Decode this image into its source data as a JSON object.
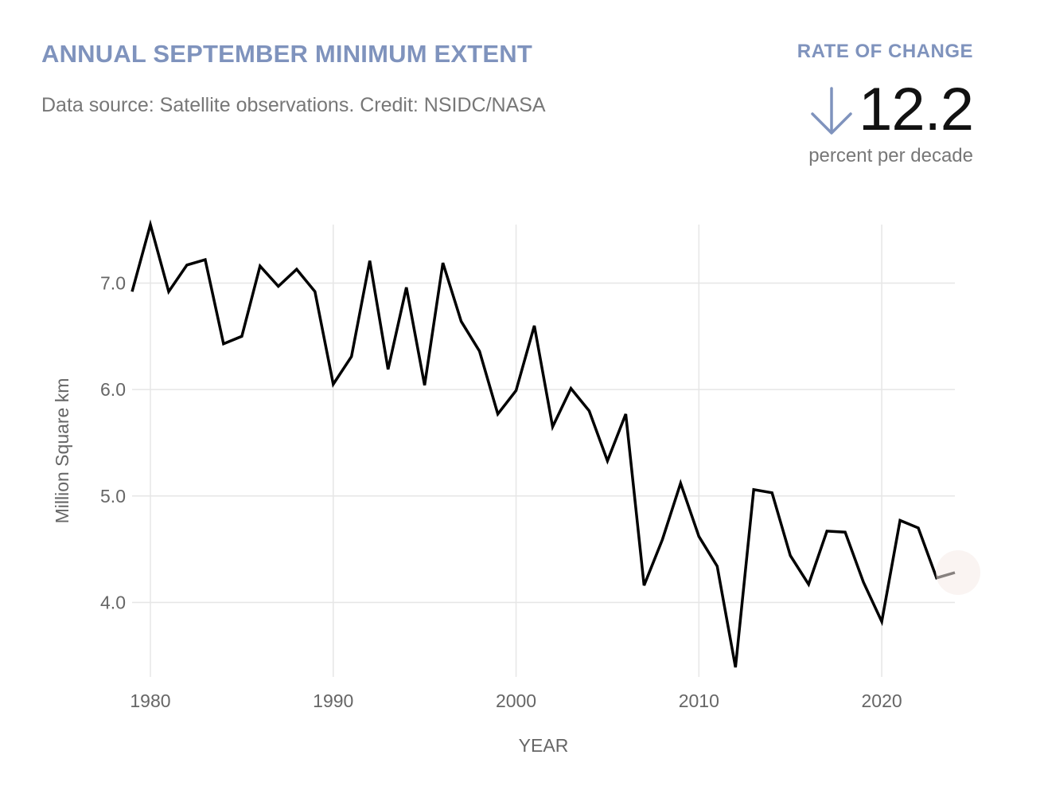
{
  "header": {
    "title": "ANNUAL SEPTEMBER MINIMUM EXTENT",
    "subtitle": "Data source: Satellite observations. Credit: NSIDC/NASA"
  },
  "rate": {
    "label": "RATE OF CHANGE",
    "direction_icon": "arrow-down-icon",
    "value": "12.2",
    "unit": "percent per decade"
  },
  "colors": {
    "accent": "#7f93bd",
    "line": "#000000",
    "grid": "#e6e6e6",
    "muted_text": "#777777"
  },
  "chart_data": {
    "type": "line",
    "title": "ANNUAL SEPTEMBER MINIMUM EXTENT",
    "xlabel": "YEAR",
    "ylabel": "Million Square km",
    "xlim": [
      1979,
      2024
    ],
    "ylim": [
      3.3,
      7.55
    ],
    "grid": true,
    "x_ticks": [
      1980,
      1990,
      2000,
      2010,
      2020
    ],
    "x_tick_labels": [
      "1980",
      "1990",
      "2000",
      "2010",
      "2020"
    ],
    "y_ticks": [
      4.0,
      5.0,
      6.0,
      7.0
    ],
    "y_tick_labels": [
      "4.0",
      "5.0",
      "6.0",
      "7.0"
    ],
    "series": [
      {
        "x": [
          1979,
          1980,
          1981,
          1982,
          1983,
          1984,
          1985,
          1986,
          1987,
          1988,
          1989,
          1990,
          1991,
          1992,
          1993,
          1994,
          1995,
          1996,
          1997,
          1998,
          1999,
          2000,
          2001,
          2002,
          2003,
          2004,
          2005,
          2006,
          2007,
          2008,
          2009,
          2010,
          2011,
          2012,
          2013,
          2014,
          2015,
          2016,
          2017,
          2018,
          2019,
          2020,
          2021,
          2022,
          2023,
          2024
        ],
        "values": [
          6.92,
          7.55,
          6.92,
          7.17,
          7.22,
          6.43,
          6.5,
          7.16,
          6.97,
          7.13,
          6.92,
          6.05,
          6.31,
          7.21,
          6.19,
          6.96,
          6.04,
          7.19,
          6.64,
          6.36,
          5.77,
          5.99,
          6.6,
          5.65,
          6.01,
          5.8,
          5.33,
          5.77,
          4.16,
          4.59,
          5.12,
          4.62,
          4.34,
          3.39,
          5.06,
          5.03,
          4.44,
          4.17,
          4.67,
          4.66,
          4.19,
          3.82,
          4.77,
          4.7,
          4.23,
          4.28
        ]
      }
    ]
  }
}
